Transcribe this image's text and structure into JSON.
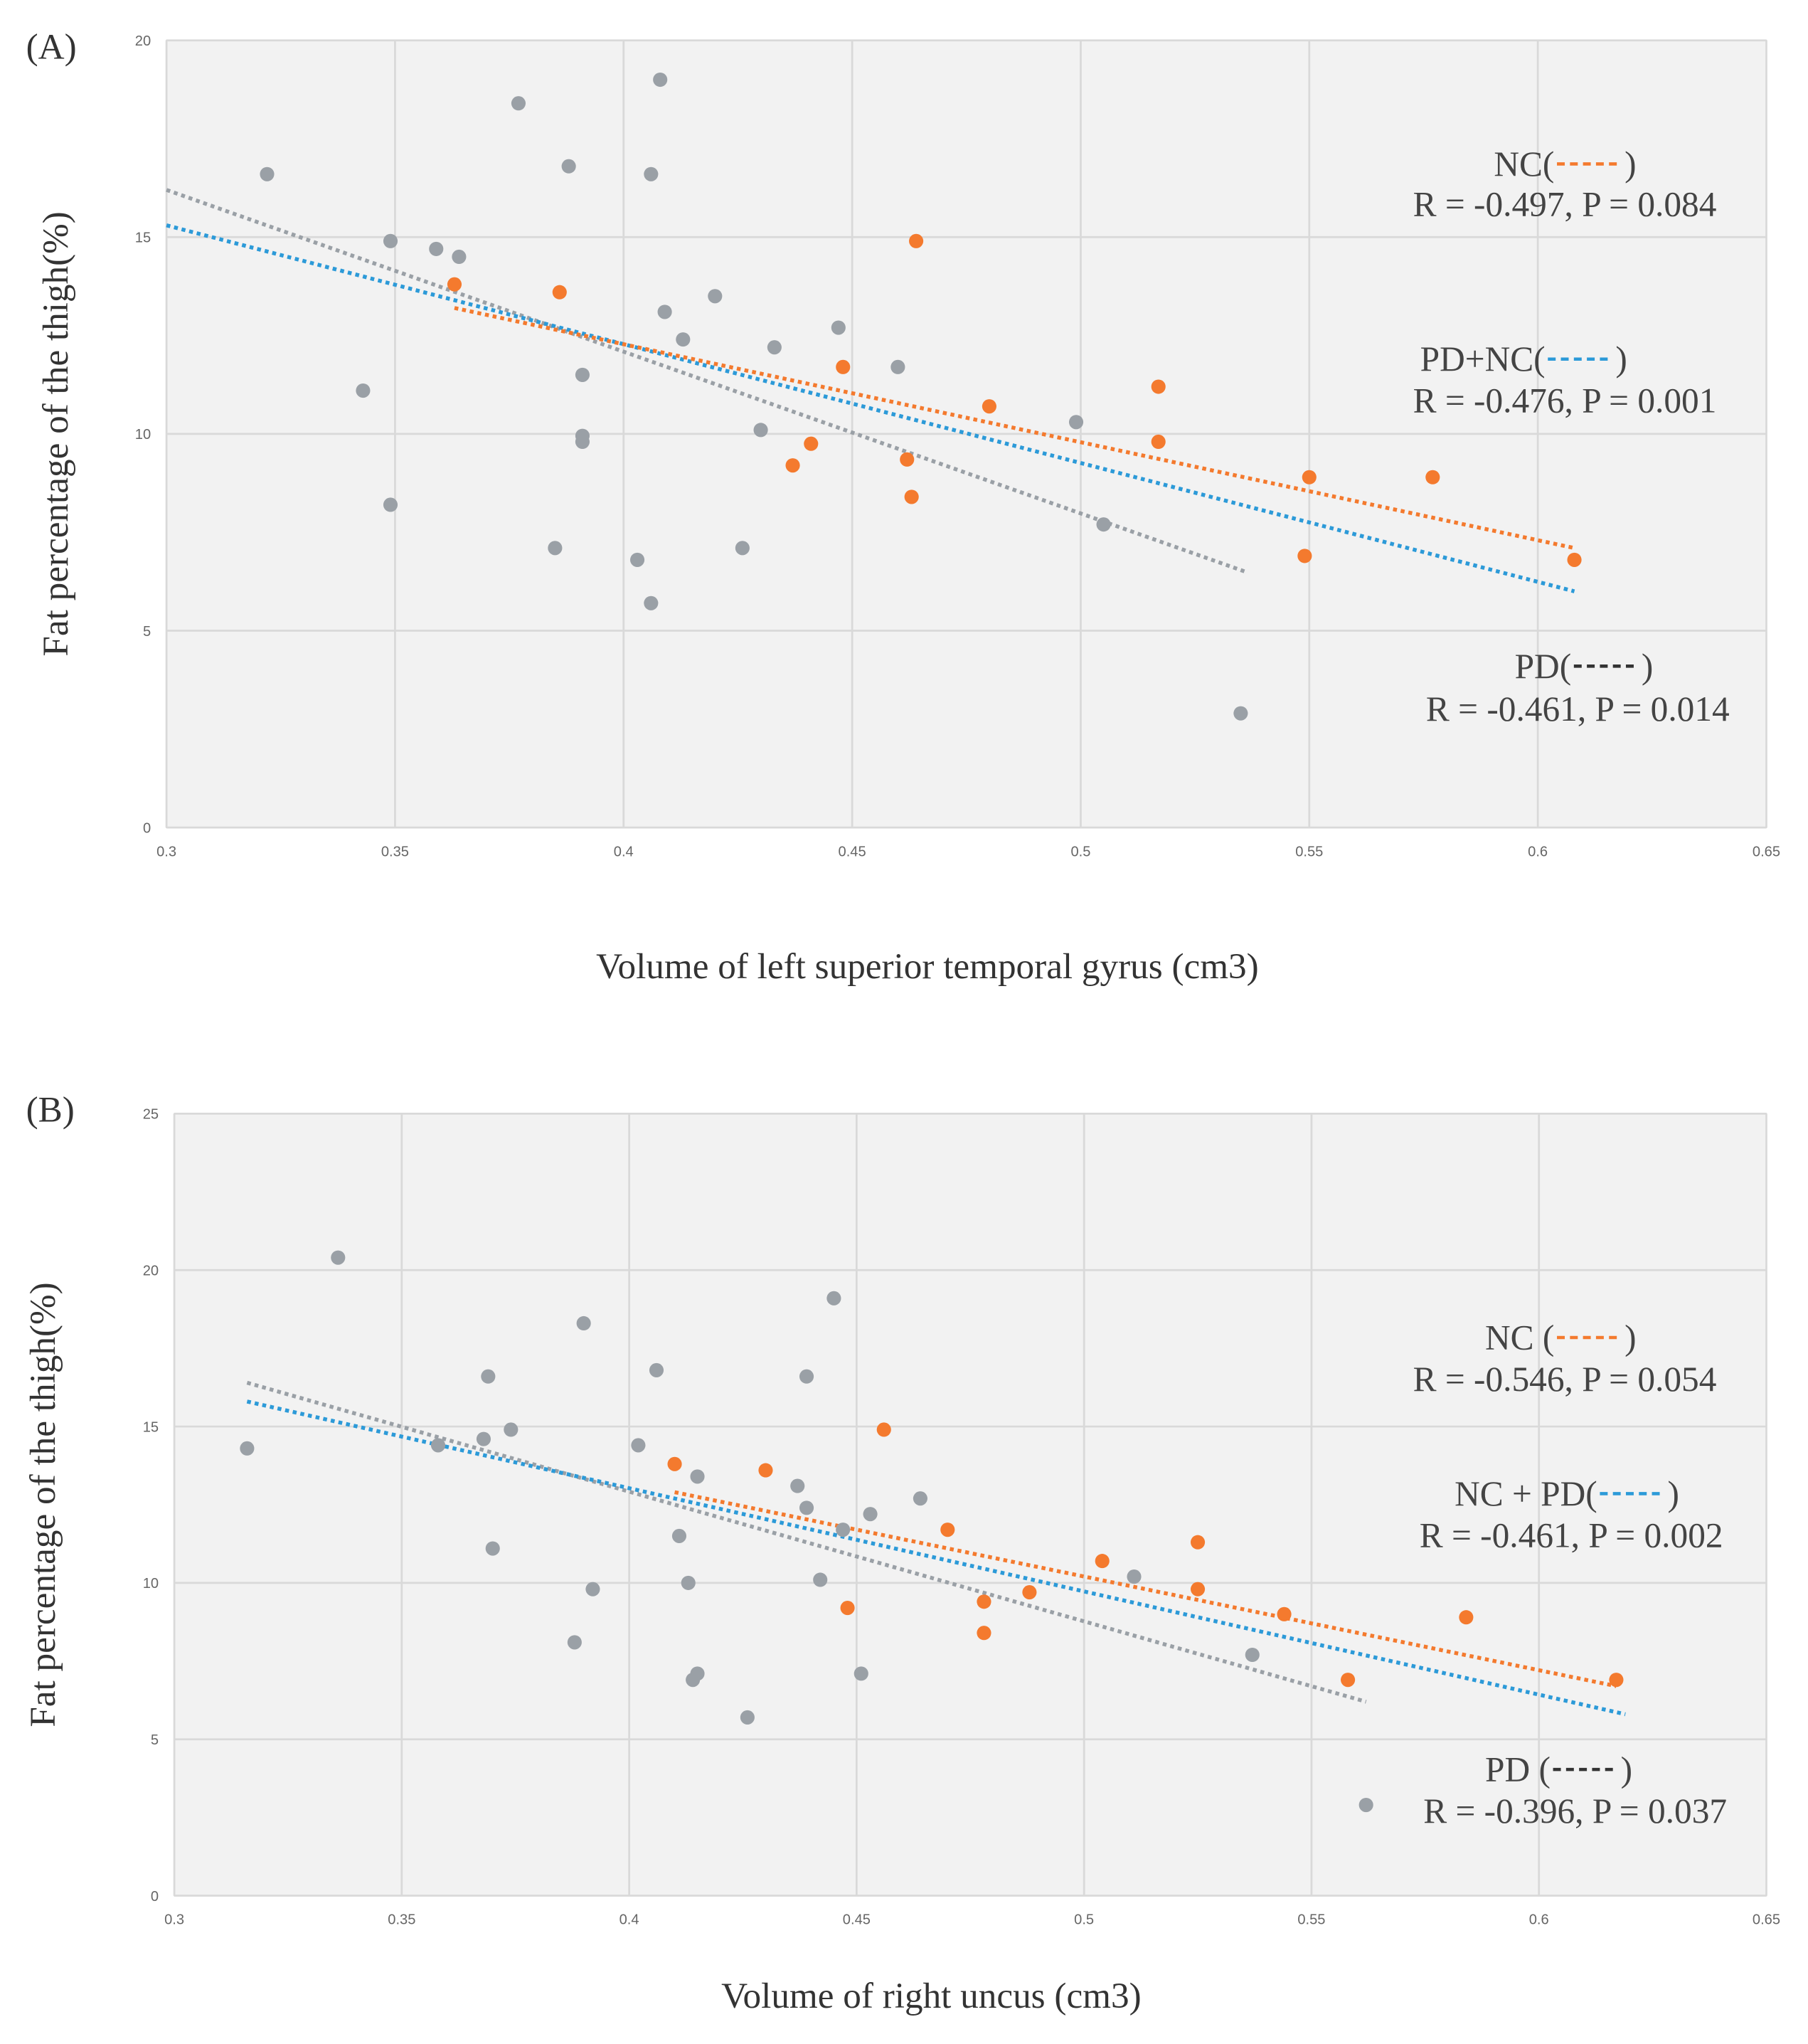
{
  "colors": {
    "PD": "#9aa0a6",
    "NC": "#f47a2e",
    "ALL": "#2c9ad8",
    "plot_bg": "#f2f2f2",
    "grid": "#d9d9d9"
  },
  "chart_data": [
    {
      "type": "scatter",
      "panel_label": "(A)",
      "xlabel": "Volume of left superior temporal gyrus (cm3)",
      "ylabel": "Fat percentage of the thigh(%)",
      "xlim": [
        0.3,
        0.65
      ],
      "ylim": [
        0,
        20
      ],
      "xticks": [
        "0.3",
        "0.35",
        "0.4",
        "0.45",
        "0.5",
        "0.55",
        "0.6",
        "0.65"
      ],
      "yticks": [
        "0",
        "5",
        "10",
        "15",
        "20"
      ],
      "grid": true,
      "series": [
        {
          "name": "PD",
          "color_key": "PD",
          "points": [
            [
              0.322,
              16.6
            ],
            [
              0.343,
              11.1
            ],
            [
              0.349,
              14.9
            ],
            [
              0.349,
              8.2
            ],
            [
              0.359,
              14.7
            ],
            [
              0.364,
              14.5
            ],
            [
              0.377,
              18.4
            ],
            [
              0.385,
              7.1
            ],
            [
              0.388,
              16.8
            ],
            [
              0.391,
              11.5
            ],
            [
              0.391,
              9.95
            ],
            [
              0.391,
              9.8
            ],
            [
              0.403,
              6.8
            ],
            [
              0.406,
              16.6
            ],
            [
              0.406,
              5.7
            ],
            [
              0.408,
              19.0
            ],
            [
              0.409,
              13.1
            ],
            [
              0.413,
              12.4
            ],
            [
              0.42,
              13.5
            ],
            [
              0.426,
              7.1
            ],
            [
              0.43,
              10.1
            ],
            [
              0.433,
              12.2
            ],
            [
              0.447,
              12.7
            ],
            [
              0.46,
              11.7
            ],
            [
              0.499,
              10.3
            ],
            [
              0.505,
              7.7
            ],
            [
              0.535,
              2.9
            ]
          ]
        },
        {
          "name": "NC",
          "color_key": "NC",
          "points": [
            [
              0.363,
              13.8
            ],
            [
              0.386,
              13.6
            ],
            [
              0.437,
              9.2
            ],
            [
              0.441,
              9.75
            ],
            [
              0.448,
              11.7
            ],
            [
              0.464,
              14.9
            ],
            [
              0.462,
              9.35
            ],
            [
              0.463,
              8.4
            ],
            [
              0.48,
              10.7
            ],
            [
              0.517,
              11.2
            ],
            [
              0.517,
              9.8
            ],
            [
              0.55,
              8.9
            ],
            [
              0.549,
              6.9
            ],
            [
              0.577,
              8.9
            ],
            [
              0.608,
              6.8
            ]
          ]
        }
      ],
      "trendlines": [
        {
          "name": "PD",
          "color_key": "PD",
          "from": [
            0.3,
            16.2
          ],
          "to": [
            0.536,
            6.5
          ]
        },
        {
          "name": "PD+NC",
          "color_key": "ALL",
          "from": [
            0.3,
            15.3
          ],
          "to": [
            0.608,
            6.0
          ]
        },
        {
          "name": "NC",
          "color_key": "NC",
          "from": [
            0.363,
            13.2
          ],
          "to": [
            0.608,
            7.1
          ]
        }
      ],
      "annotations": [
        {
          "label": "NC(",
          "close": ")",
          "color_key": "NC",
          "stats": "R = -0.497, P = 0.084"
        },
        {
          "label": "PD+NC(",
          "close": ")",
          "color_key": "ALL",
          "stats": "R = -0.476, P = 0.001"
        },
        {
          "label": "PD(",
          "close": ")",
          "color_key": "BLACK",
          "stats": "R = -0.461, P = 0.014"
        }
      ]
    },
    {
      "type": "scatter",
      "panel_label": "(B)",
      "xlabel": "Volume of right uncus (cm3)",
      "ylabel": "Fat percentage of the thigh(%)",
      "xlim": [
        0.3,
        0.65
      ],
      "ylim": [
        0,
        25
      ],
      "xticks": [
        "0.3",
        "0.35",
        "0.4",
        "0.45",
        "0.5",
        "0.55",
        "0.6",
        "0.65"
      ],
      "yticks": [
        "0",
        "5",
        "10",
        "15",
        "20",
        "25"
      ],
      "grid": true,
      "series": [
        {
          "name": "PD",
          "color_key": "PD",
          "points": [
            [
              0.316,
              14.3
            ],
            [
              0.336,
              20.4
            ],
            [
              0.358,
              14.4
            ],
            [
              0.368,
              14.6
            ],
            [
              0.369,
              16.6
            ],
            [
              0.37,
              11.1
            ],
            [
              0.374,
              14.9
            ],
            [
              0.388,
              8.1
            ],
            [
              0.39,
              18.3
            ],
            [
              0.392,
              9.8
            ],
            [
              0.402,
              14.4
            ],
            [
              0.406,
              16.8
            ],
            [
              0.411,
              11.5
            ],
            [
              0.413,
              10.0
            ],
            [
              0.415,
              13.4
            ],
            [
              0.414,
              6.9
            ],
            [
              0.415,
              7.1
            ],
            [
              0.426,
              5.7
            ],
            [
              0.437,
              13.1
            ],
            [
              0.439,
              16.6
            ],
            [
              0.439,
              12.4
            ],
            [
              0.442,
              10.1
            ],
            [
              0.445,
              19.1
            ],
            [
              0.447,
              11.7
            ],
            [
              0.451,
              7.1
            ],
            [
              0.453,
              12.2
            ],
            [
              0.464,
              12.7
            ],
            [
              0.511,
              10.2
            ],
            [
              0.537,
              7.7
            ],
            [
              0.562,
              2.9
            ]
          ]
        },
        {
          "name": "NC",
          "color_key": "NC",
          "points": [
            [
              0.41,
              13.8
            ],
            [
              0.43,
              13.6
            ],
            [
              0.448,
              9.2
            ],
            [
              0.456,
              14.9
            ],
            [
              0.47,
              11.7
            ],
            [
              0.478,
              8.4
            ],
            [
              0.478,
              9.4
            ],
            [
              0.488,
              9.7
            ],
            [
              0.504,
              10.7
            ],
            [
              0.525,
              11.3
            ],
            [
              0.525,
              9.8
            ],
            [
              0.544,
              9.0
            ],
            [
              0.558,
              6.9
            ],
            [
              0.584,
              8.9
            ],
            [
              0.617,
              6.9
            ]
          ]
        }
      ],
      "trendlines": [
        {
          "name": "PD",
          "color_key": "PD",
          "from": [
            0.316,
            16.4
          ],
          "to": [
            0.562,
            6.2
          ]
        },
        {
          "name": "NC + PD",
          "color_key": "ALL",
          "from": [
            0.316,
            15.8
          ],
          "to": [
            0.619,
            5.8
          ]
        },
        {
          "name": "NC",
          "color_key": "NC",
          "from": [
            0.41,
            12.9
          ],
          "to": [
            0.617,
            6.7
          ]
        }
      ],
      "annotations": [
        {
          "label": "NC (",
          "close": ")",
          "color_key": "NC",
          "stats": "R = -0.546, P = 0.054"
        },
        {
          "label": "NC + PD(",
          "close": ")",
          "color_key": "ALL",
          "stats": "R = -0.461, P = 0.002"
        },
        {
          "label": "PD (",
          "close": ")",
          "color_key": "BLACK",
          "stats": "R = -0.396, P = 0.037"
        }
      ]
    }
  ]
}
